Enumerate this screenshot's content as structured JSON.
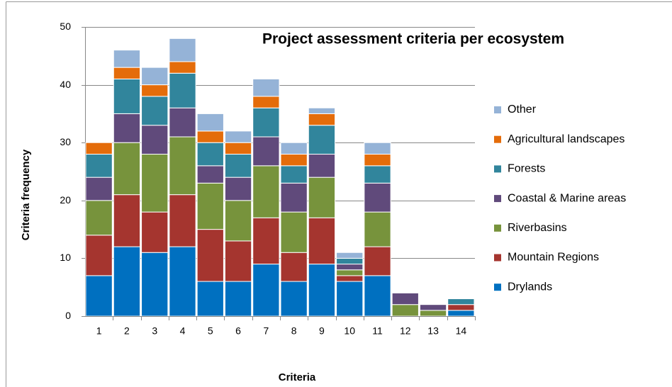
{
  "chart_data": {
    "type": "stacked_bar",
    "title": "Project assessment criteria per ecosystem",
    "x_label": "Criteria",
    "y_label": "Criteria frequency",
    "categories": [
      "1",
      "2",
      "3",
      "4",
      "5",
      "6",
      "7",
      "8",
      "9",
      "10",
      "11",
      "12",
      "13",
      "14"
    ],
    "series": [
      {
        "name": "Drylands",
        "color": "#0070c0",
        "values": [
          7,
          12,
          11,
          12,
          6,
          6,
          9,
          6,
          9,
          6,
          7,
          0,
          0,
          1
        ]
      },
      {
        "name": "Mountain Regions",
        "color": "#a5352f",
        "values": [
          7,
          9,
          7,
          9,
          9,
          7,
          8,
          5,
          8,
          1,
          5,
          0,
          0,
          1
        ]
      },
      {
        "name": "Riverbasins",
        "color": "#77933c",
        "values": [
          6,
          9,
          10,
          10,
          8,
          7,
          9,
          7,
          7,
          1,
          6,
          2,
          1,
          0
        ]
      },
      {
        "name": "Coastal & Marine areas",
        "color": "#604a7b",
        "values": [
          4,
          5,
          5,
          5,
          3,
          4,
          5,
          5,
          4,
          1,
          5,
          2,
          1,
          0
        ]
      },
      {
        "name": "Forests",
        "color": "#31859c",
        "values": [
          4,
          6,
          5,
          6,
          4,
          4,
          5,
          3,
          5,
          1,
          3,
          0,
          0,
          1
        ]
      },
      {
        "name": "Agricultural landscapes",
        "color": "#e46c0a",
        "values": [
          2,
          2,
          2,
          2,
          2,
          2,
          2,
          2,
          2,
          0,
          2,
          0,
          0,
          0
        ]
      },
      {
        "name": "Other",
        "color": "#95b3d7",
        "values": [
          0,
          3,
          3,
          4,
          3,
          2,
          3,
          2,
          1,
          1,
          2,
          0,
          0,
          0
        ]
      }
    ],
    "ylim": [
      0,
      50
    ],
    "yticks": [
      0,
      10,
      20,
      30,
      40,
      50
    ],
    "grid": true,
    "legend": "right"
  }
}
